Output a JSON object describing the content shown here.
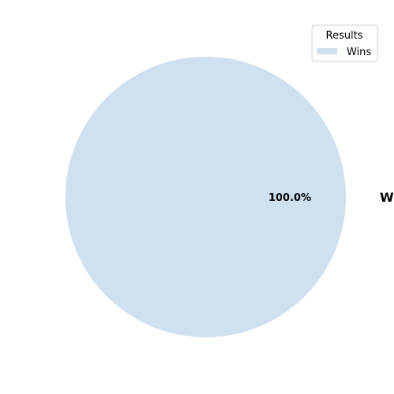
{
  "chart_data": {
    "type": "pie",
    "categories": [
      "Wins"
    ],
    "values": [
      100
    ],
    "percent_labels": [
      "100.0%"
    ],
    "colors": [
      "#cfe0f1"
    ],
    "legend": {
      "title": "Results",
      "entries": [
        "Wins"
      ],
      "placement": "top-right"
    }
  }
}
